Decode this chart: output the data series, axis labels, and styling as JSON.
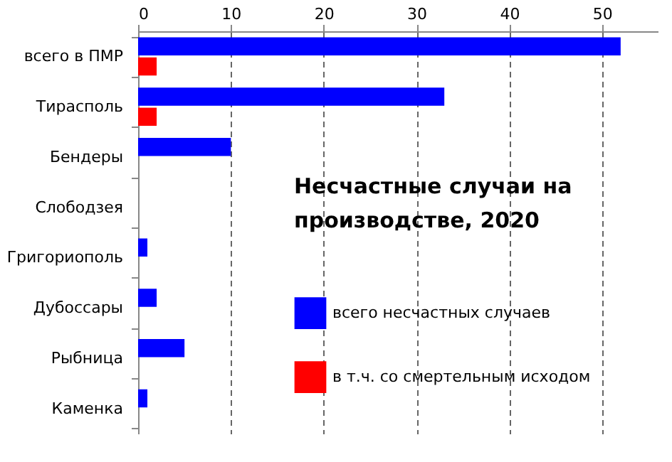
{
  "chart_data": {
    "type": "bar",
    "orientation": "horizontal",
    "title": "Несчастные случаи на производстве,  2020",
    "categories": [
      "всего в ПМР",
      "Тирасполь",
      "Бендеры",
      "Слободзея",
      "Григориополь",
      "Дубоссары",
      "Рыбница",
      "Каменка"
    ],
    "series": [
      {
        "name": "всего несчастных случаев",
        "color": "#0000ff",
        "values": [
          52,
          33,
          10,
          0,
          1,
          2,
          5,
          1
        ]
      },
      {
        "name": "в т.ч.  со смертельным исходом",
        "color": "#ff0000",
        "values": [
          2,
          2,
          0,
          0,
          0,
          0,
          0,
          0
        ]
      }
    ],
    "xlim": [
      0,
      56
    ],
    "xticks": [
      0,
      10,
      20,
      30,
      40,
      50
    ],
    "grid": "x",
    "legend": "bottom right"
  }
}
